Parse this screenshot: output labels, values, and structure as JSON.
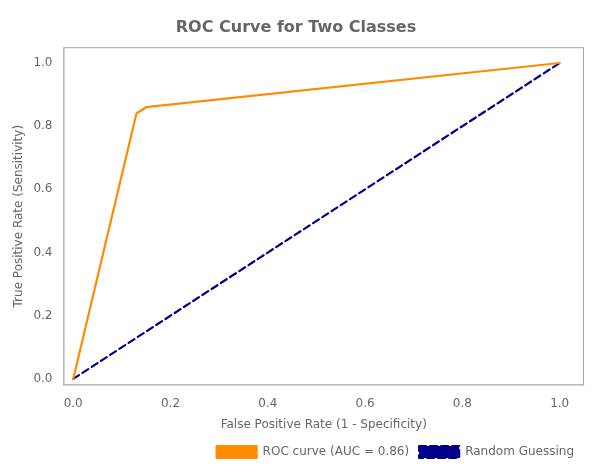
{
  "chart_data": {
    "type": "line",
    "title": "ROC Curve for Two Classes",
    "xlabel": "False Positive Rate (1 - Specificity)",
    "ylabel": "True Positive Rate (Sensitivity)",
    "series": [
      {
        "name": "ROC curve (AUC = 0.86)",
        "color": "#FF8C00",
        "line_style": "solid",
        "x": [
          0.0,
          0.13,
          0.15,
          1.0
        ],
        "values": [
          0.0,
          0.84,
          0.86,
          1.0
        ]
      },
      {
        "name": "Random Guessing",
        "color": "#00008B",
        "line_style": "dashed",
        "x": [
          0.0,
          1.0
        ],
        "values": [
          0.0,
          1.0
        ]
      }
    ],
    "xlim": [
      -0.02,
      1.05
    ],
    "ylim": [
      -0.02,
      1.05
    ],
    "xticks": [
      {
        "value": 0.0,
        "label": "0.0"
      },
      0.2,
      0.4,
      0.6,
      0.8,
      {
        "value": 1.0,
        "label": "1.0"
      }
    ],
    "yticks": [
      {
        "value": 0.0,
        "label": "0.0"
      },
      0.2,
      0.4,
      0.6,
      0.8,
      {
        "value": 1.0,
        "label": "1.0"
      }
    ],
    "legend": "lower right",
    "grid": false
  }
}
